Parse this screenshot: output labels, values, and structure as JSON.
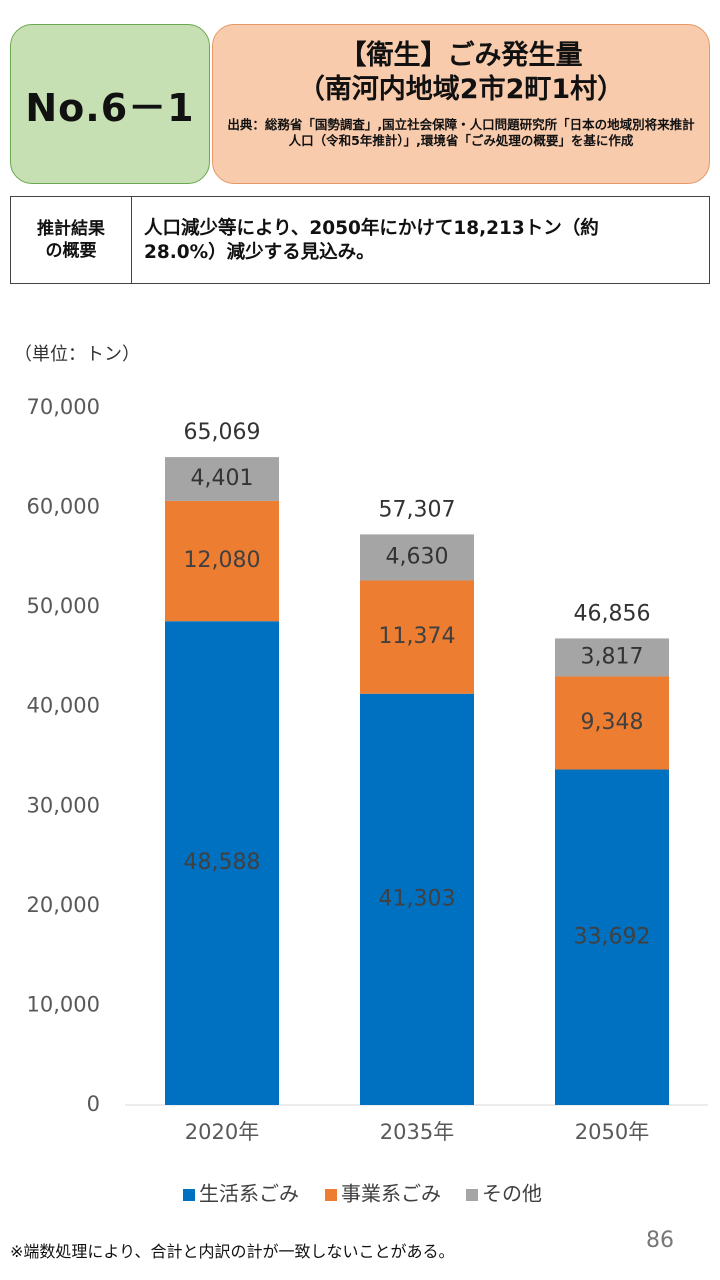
{
  "header": {
    "number": "No.6－1",
    "title_line1": "【衛生】ごみ発生量",
    "title_line2": "（南河内地域2市2町1村）",
    "source": "出典：総務省「国勢調査」,国立社会保障・人口問題研究所「日本の地域別将来推計人口（令和5年推計）」,環境省「ごみ処理の概要」を基に作成"
  },
  "summary": {
    "label_line1": "推計結果",
    "label_line2": "の概要",
    "text_line1": "人口減少等により、2050年にかけて18,213トン（約",
    "text_line2": "28.0%）減少する見込み。"
  },
  "unit_label": "（単位：トン）",
  "colors": {
    "household": "#0070c0",
    "business": "#ed7d31",
    "other": "#a5a5a5"
  },
  "chart_data": {
    "type": "bar",
    "stacked": true,
    "categories": [
      "2020年",
      "2035年",
      "2050年"
    ],
    "series": [
      {
        "name": "生活系ごみ",
        "values": [
          48588,
          41303,
          33692
        ]
      },
      {
        "name": "事業系ごみ",
        "values": [
          12080,
          11374,
          9348
        ]
      },
      {
        "name": "その他",
        "values": [
          4401,
          4630,
          3817
        ]
      }
    ],
    "value_labels": [
      [
        "48,588",
        "41,303",
        "33,692"
      ],
      [
        "12,080",
        "11,374",
        "9,348"
      ],
      [
        "4,401",
        "4,630",
        "3,817"
      ]
    ],
    "totals": [
      65069,
      57307,
      46856
    ],
    "total_labels": [
      "65,069",
      "57,307",
      "46,856"
    ],
    "yticks": [
      0,
      10000,
      20000,
      30000,
      40000,
      50000,
      60000,
      70000
    ],
    "ytick_labels": [
      "0",
      "10,000",
      "20,000",
      "30,000",
      "40,000",
      "50,000",
      "60,000",
      "70,000"
    ],
    "ylim": [
      0,
      70000
    ],
    "grid": false,
    "legend_position": "bottom"
  },
  "footnote": "※端数処理により、合計と内訳の計が一致しないことがある。",
  "page_number": "86"
}
